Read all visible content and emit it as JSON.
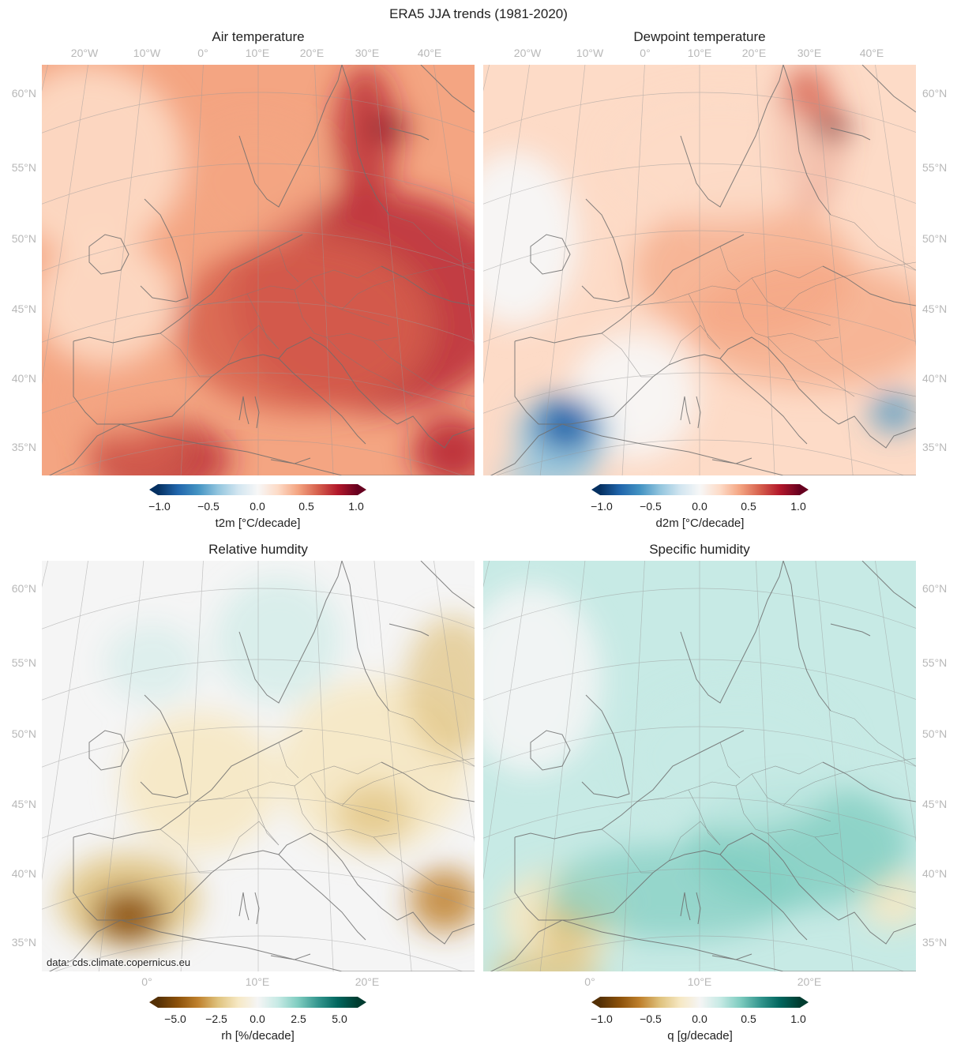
{
  "figure": {
    "title": "ERA5 JJA trends (1981-2020)",
    "credit": "data: cds.climate.copernicus.eu"
  },
  "lon_ticks_top": [
    "20°W",
    "10°W",
    "0°",
    "10°E",
    "20°E",
    "30°E",
    "40°E"
  ],
  "lon_ticks_bottom": [
    "0°",
    "10°E",
    "20°E"
  ],
  "lat_ticks": [
    "60°N",
    "55°N",
    "50°N",
    "45°N",
    "40°N",
    "35°N"
  ],
  "panels": [
    {
      "id": "t2m",
      "title": "Air temperature",
      "cbar_label": "t2m [°C/decade]",
      "cbar_ticks": [
        "−1.0",
        "−0.5",
        "0.0",
        "0.5",
        "1.0"
      ],
      "colormap": [
        "#053061",
        "#2166ac",
        "#4393c3",
        "#92c5de",
        "#d1e5f0",
        "#f7f7f7",
        "#fddbc7",
        "#f4a582",
        "#d6604d",
        "#b2182b",
        "#67001f"
      ]
    },
    {
      "id": "d2m",
      "title": "Dewpoint temperature",
      "cbar_label": "d2m [°C/decade]",
      "cbar_ticks": [
        "−1.0",
        "−0.5",
        "0.0",
        "0.5",
        "1.0"
      ],
      "colormap": [
        "#053061",
        "#2166ac",
        "#4393c3",
        "#92c5de",
        "#d1e5f0",
        "#f7f7f7",
        "#fddbc7",
        "#f4a582",
        "#d6604d",
        "#b2182b",
        "#67001f"
      ]
    },
    {
      "id": "rh",
      "title": "Relative humdity",
      "cbar_label": "rh [%/decade]",
      "cbar_ticks": [
        "−5.0",
        "−2.5",
        "0.0",
        "2.5",
        "5.0"
      ],
      "colormap": [
        "#543005",
        "#8c510a",
        "#bf812d",
        "#dfc27d",
        "#f6e8c3",
        "#f5f5f5",
        "#c7eae5",
        "#80cdc1",
        "#35978f",
        "#01665e",
        "#003c30"
      ]
    },
    {
      "id": "q",
      "title": "Specific humidity",
      "cbar_label": "q [g/decade]",
      "cbar_ticks": [
        "−1.0",
        "−0.5",
        "0.0",
        "0.5",
        "1.0"
      ],
      "colormap": [
        "#543005",
        "#8c510a",
        "#bf812d",
        "#dfc27d",
        "#f6e8c3",
        "#f5f5f5",
        "#c7eae5",
        "#80cdc1",
        "#35978f",
        "#01665e",
        "#003c30"
      ]
    }
  ]
}
